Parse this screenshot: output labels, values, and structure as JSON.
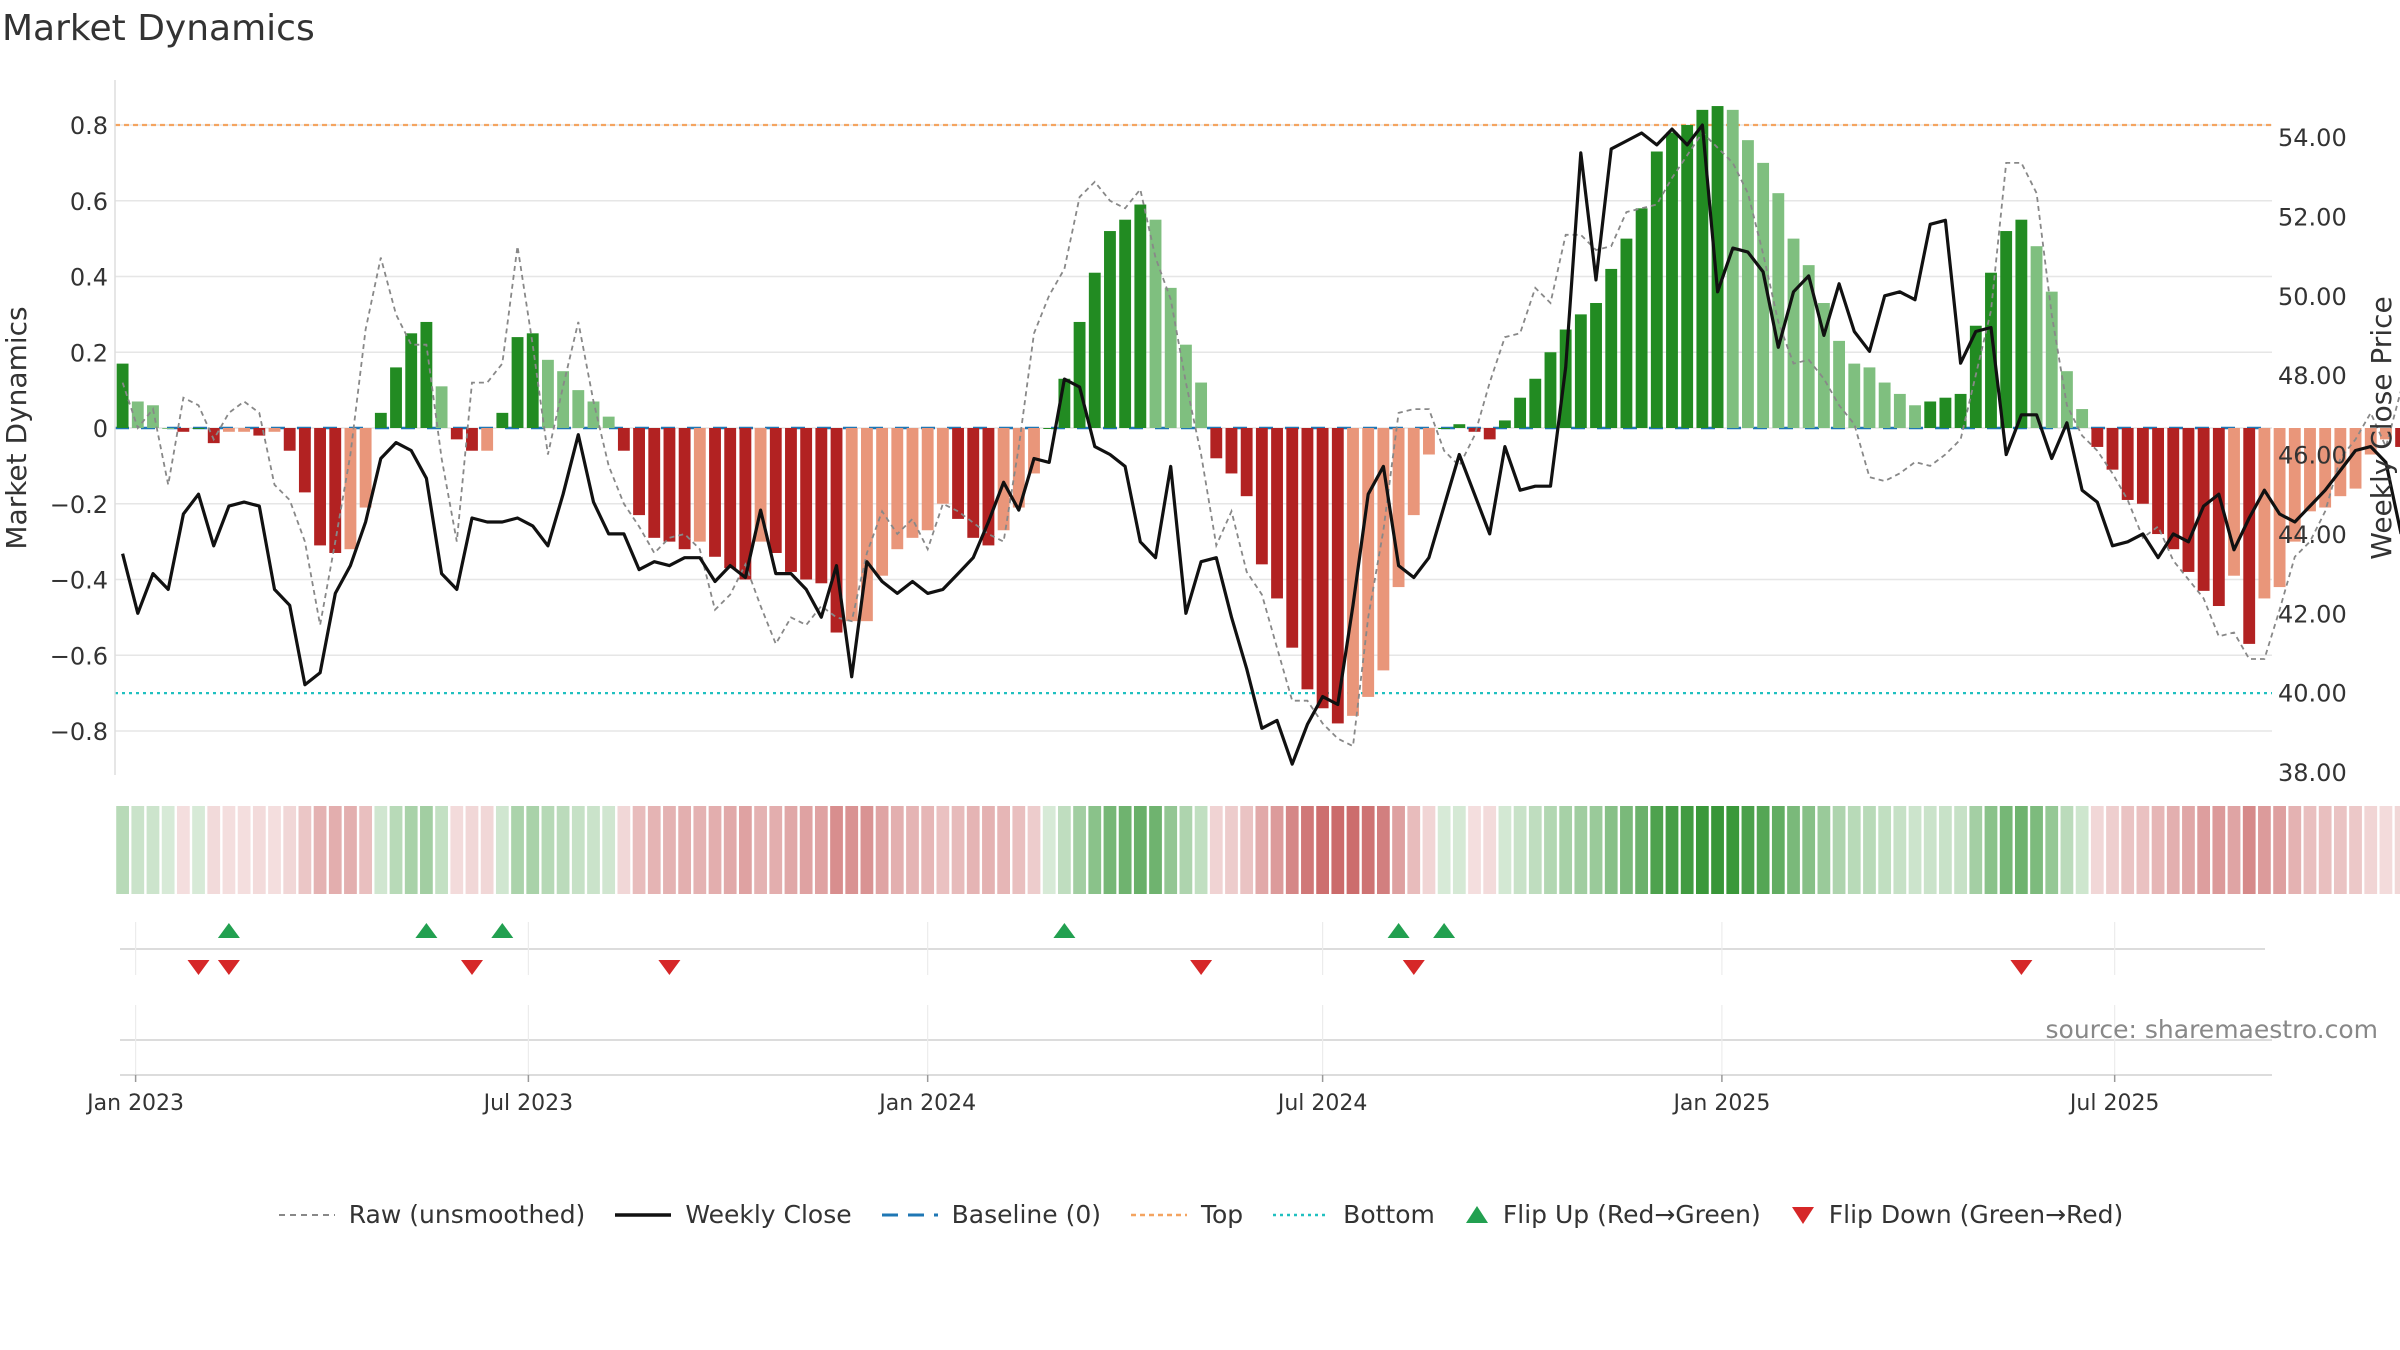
{
  "title": "Market Dynamics",
  "source": "source: sharemaestro.com",
  "legend": {
    "raw": "Raw (unsmoothed)",
    "close": "Weekly Close",
    "baseline": "Baseline (0)",
    "top": "Top",
    "bottom": "Bottom",
    "flip_up": "Flip Up (Red→Green)",
    "flip_down": "Flip Down (Green→Red)"
  },
  "colors": {
    "strong_green": "#228b22",
    "light_green": "#7fbf7f",
    "strong_red": "#b22222",
    "light_red": "#e9967a",
    "top_line": "#f4a460",
    "bottom_line": "#20c0c0",
    "baseline": "#1f77b4",
    "raw": "#888888",
    "close": "#111111",
    "flip_up": "#22a050",
    "flip_down": "#d62728"
  },
  "chart_data": {
    "type": "bar",
    "x_start": "2022-12-26",
    "x_end": "2025-09-08",
    "x_ticks": [
      "Jan 2023",
      "Jul 2023",
      "Jan 2024",
      "Jul 2024",
      "Jan 2025",
      "Jul 2025"
    ],
    "y_left_label": "Market Dynamics",
    "y_left_ticks": [
      "0.8",
      "0.6",
      "0.4",
      "0.2",
      "0",
      "−0.2",
      "−0.4",
      "−0.6",
      "−0.8"
    ],
    "y_left_range": [
      -0.9,
      0.92
    ],
    "y_right_label": "Weekly Close Price",
    "y_right_ticks": [
      "54.00",
      "52.00",
      "50.00",
      "48.00",
      "46.00",
      "44.00",
      "42.00",
      "40.00",
      "38.00"
    ],
    "y_right_range": [
      37.7,
      55.5
    ],
    "top_level": 0.8,
    "bottom_level": -0.7,
    "grid": true,
    "legend_position": "bottom",
    "dynamics": [
      0.17,
      0.07,
      0.06,
      0.0,
      -0.01,
      0.0,
      -0.04,
      -0.01,
      -0.01,
      -0.02,
      -0.01,
      -0.06,
      -0.17,
      -0.31,
      -0.33,
      -0.32,
      -0.21,
      0.04,
      0.16,
      0.25,
      0.28,
      0.11,
      -0.03,
      -0.06,
      -0.06,
      0.04,
      0.24,
      0.25,
      0.18,
      0.15,
      0.1,
      0.07,
      0.03,
      -0.06,
      -0.23,
      -0.29,
      -0.3,
      -0.32,
      -0.3,
      -0.34,
      -0.37,
      -0.4,
      -0.3,
      -0.33,
      -0.38,
      -0.4,
      -0.41,
      -0.54,
      -0.51,
      -0.51,
      -0.39,
      -0.32,
      -0.29,
      -0.27,
      -0.2,
      -0.24,
      -0.29,
      -0.31,
      -0.27,
      -0.21,
      -0.12,
      0.0,
      0.13,
      0.28,
      0.41,
      0.52,
      0.55,
      0.59,
      0.55,
      0.37,
      0.22,
      0.12,
      -0.08,
      -0.12,
      -0.18,
      -0.36,
      -0.45,
      -0.58,
      -0.69,
      -0.74,
      -0.78,
      -0.76,
      -0.71,
      -0.64,
      -0.42,
      -0.23,
      -0.07,
      0.0,
      0.01,
      -0.01,
      -0.03,
      0.02,
      0.08,
      0.13,
      0.2,
      0.26,
      0.3,
      0.33,
      0.42,
      0.5,
      0.58,
      0.73,
      0.78,
      0.8,
      0.84,
      0.85,
      0.84,
      0.76,
      0.7,
      0.62,
      0.5,
      0.43,
      0.33,
      0.23,
      0.17,
      0.16,
      0.12,
      0.09,
      0.06,
      0.07,
      0.08,
      0.09,
      0.27,
      0.41,
      0.52,
      0.55,
      0.48,
      0.36,
      0.15,
      0.05,
      -0.05,
      -0.11,
      -0.19,
      -0.2,
      -0.28,
      -0.32,
      -0.38,
      -0.43,
      -0.47,
      -0.39,
      -0.57,
      -0.45,
      -0.42,
      -0.3,
      -0.22,
      -0.21,
      -0.18,
      -0.16,
      -0.07,
      -0.03,
      -0.05,
      -0.06,
      -0.07
    ],
    "raw": [
      0.12,
      0.0,
      0.05,
      -0.15,
      0.08,
      0.06,
      -0.03,
      0.04,
      0.07,
      0.04,
      -0.15,
      -0.19,
      -0.3,
      -0.52,
      -0.3,
      -0.07,
      0.26,
      0.45,
      0.3,
      0.22,
      0.22,
      -0.08,
      -0.3,
      0.12,
      0.12,
      0.17,
      0.48,
      0.22,
      -0.07,
      0.11,
      0.28,
      0.07,
      -0.1,
      -0.2,
      -0.26,
      -0.33,
      -0.29,
      -0.28,
      -0.32,
      -0.48,
      -0.44,
      -0.36,
      -0.47,
      -0.57,
      -0.5,
      -0.52,
      -0.47,
      -0.5,
      -0.51,
      -0.33,
      -0.22,
      -0.28,
      -0.24,
      -0.32,
      -0.2,
      -0.22,
      -0.25,
      -0.28,
      -0.3,
      -0.05,
      0.25,
      0.35,
      0.42,
      0.61,
      0.65,
      0.6,
      0.58,
      0.63,
      0.45,
      0.34,
      0.12,
      -0.07,
      -0.31,
      -0.22,
      -0.38,
      -0.44,
      -0.58,
      -0.72,
      -0.72,
      -0.78,
      -0.82,
      -0.84,
      -0.5,
      -0.27,
      0.04,
      0.05,
      0.05,
      -0.06,
      -0.1,
      -0.02,
      0.12,
      0.24,
      0.25,
      0.37,
      0.33,
      0.51,
      0.51,
      0.47,
      0.48,
      0.57,
      0.58,
      0.59,
      0.66,
      0.72,
      0.78,
      0.74,
      0.7,
      0.62,
      0.46,
      0.28,
      0.17,
      0.18,
      0.13,
      0.06,
      0.01,
      -0.13,
      -0.14,
      -0.12,
      -0.09,
      -0.1,
      -0.07,
      -0.03,
      0.14,
      0.31,
      0.7,
      0.7,
      0.62,
      0.3,
      0.06,
      -0.02,
      -0.06,
      -0.12,
      -0.19,
      -0.29,
      -0.26,
      -0.35,
      -0.4,
      -0.45,
      -0.55,
      -0.54,
      -0.61,
      -0.61,
      -0.48,
      -0.34,
      -0.3,
      -0.22,
      -0.08,
      -0.03,
      0.04,
      -0.05,
      0.1,
      -0.05,
      -0.28
    ],
    "close": [
      43.5,
      42.0,
      43.0,
      42.6,
      44.5,
      45.0,
      43.7,
      44.7,
      44.8,
      44.7,
      42.6,
      42.2,
      40.2,
      40.5,
      42.5,
      43.2,
      44.3,
      45.9,
      46.3,
      46.1,
      45.4,
      43.0,
      42.6,
      44.4,
      44.3,
      44.3,
      44.4,
      44.2,
      43.7,
      45.0,
      46.5,
      44.8,
      44.0,
      44.0,
      43.1,
      43.3,
      43.2,
      43.4,
      43.4,
      42.8,
      43.2,
      42.9,
      44.6,
      43.0,
      43.0,
      42.6,
      41.9,
      43.2,
      40.4,
      43.3,
      42.8,
      42.5,
      42.8,
      42.5,
      42.6,
      43.0,
      43.4,
      44.3,
      45.3,
      44.6,
      45.9,
      45.8,
      47.9,
      47.7,
      46.2,
      46.0,
      45.7,
      43.8,
      43.4,
      45.7,
      42.0,
      43.3,
      43.4,
      41.9,
      40.6,
      39.1,
      39.3,
      38.2,
      39.2,
      39.9,
      39.7,
      42.2,
      45.0,
      45.7,
      43.2,
      42.9,
      43.4,
      44.7,
      46.0,
      45.0,
      44.0,
      46.2,
      45.1,
      45.2,
      45.2,
      48.2,
      53.6,
      50.4,
      53.7,
      53.9,
      54.1,
      53.8,
      54.2,
      53.8,
      54.3,
      50.1,
      51.2,
      51.1,
      50.6,
      48.7,
      50.1,
      50.5,
      49.0,
      50.3,
      49.1,
      48.6,
      50.0,
      50.1,
      49.9,
      51.8,
      51.9,
      48.3,
      49.1,
      49.2,
      46.0,
      47.0,
      47.0,
      45.9,
      46.8,
      45.1,
      44.8,
      43.7,
      43.8,
      44.0,
      43.4,
      44.0,
      43.8,
      44.7,
      45.0,
      43.6,
      44.4,
      45.1,
      44.5,
      44.3,
      44.7,
      45.1,
      45.6,
      46.1,
      46.2,
      45.8,
      44.0
    ]
  },
  "flips_up": [
    "2023-02-13",
    "2023-05-15",
    "2023-06-19",
    "2024-03-04",
    "2024-08-05",
    "2024-08-26"
  ],
  "flips_down": [
    "2023-01-30",
    "2023-02-13",
    "2023-06-05",
    "2023-09-04",
    "2024-05-06",
    "2024-08-12",
    "2025-05-19"
  ]
}
